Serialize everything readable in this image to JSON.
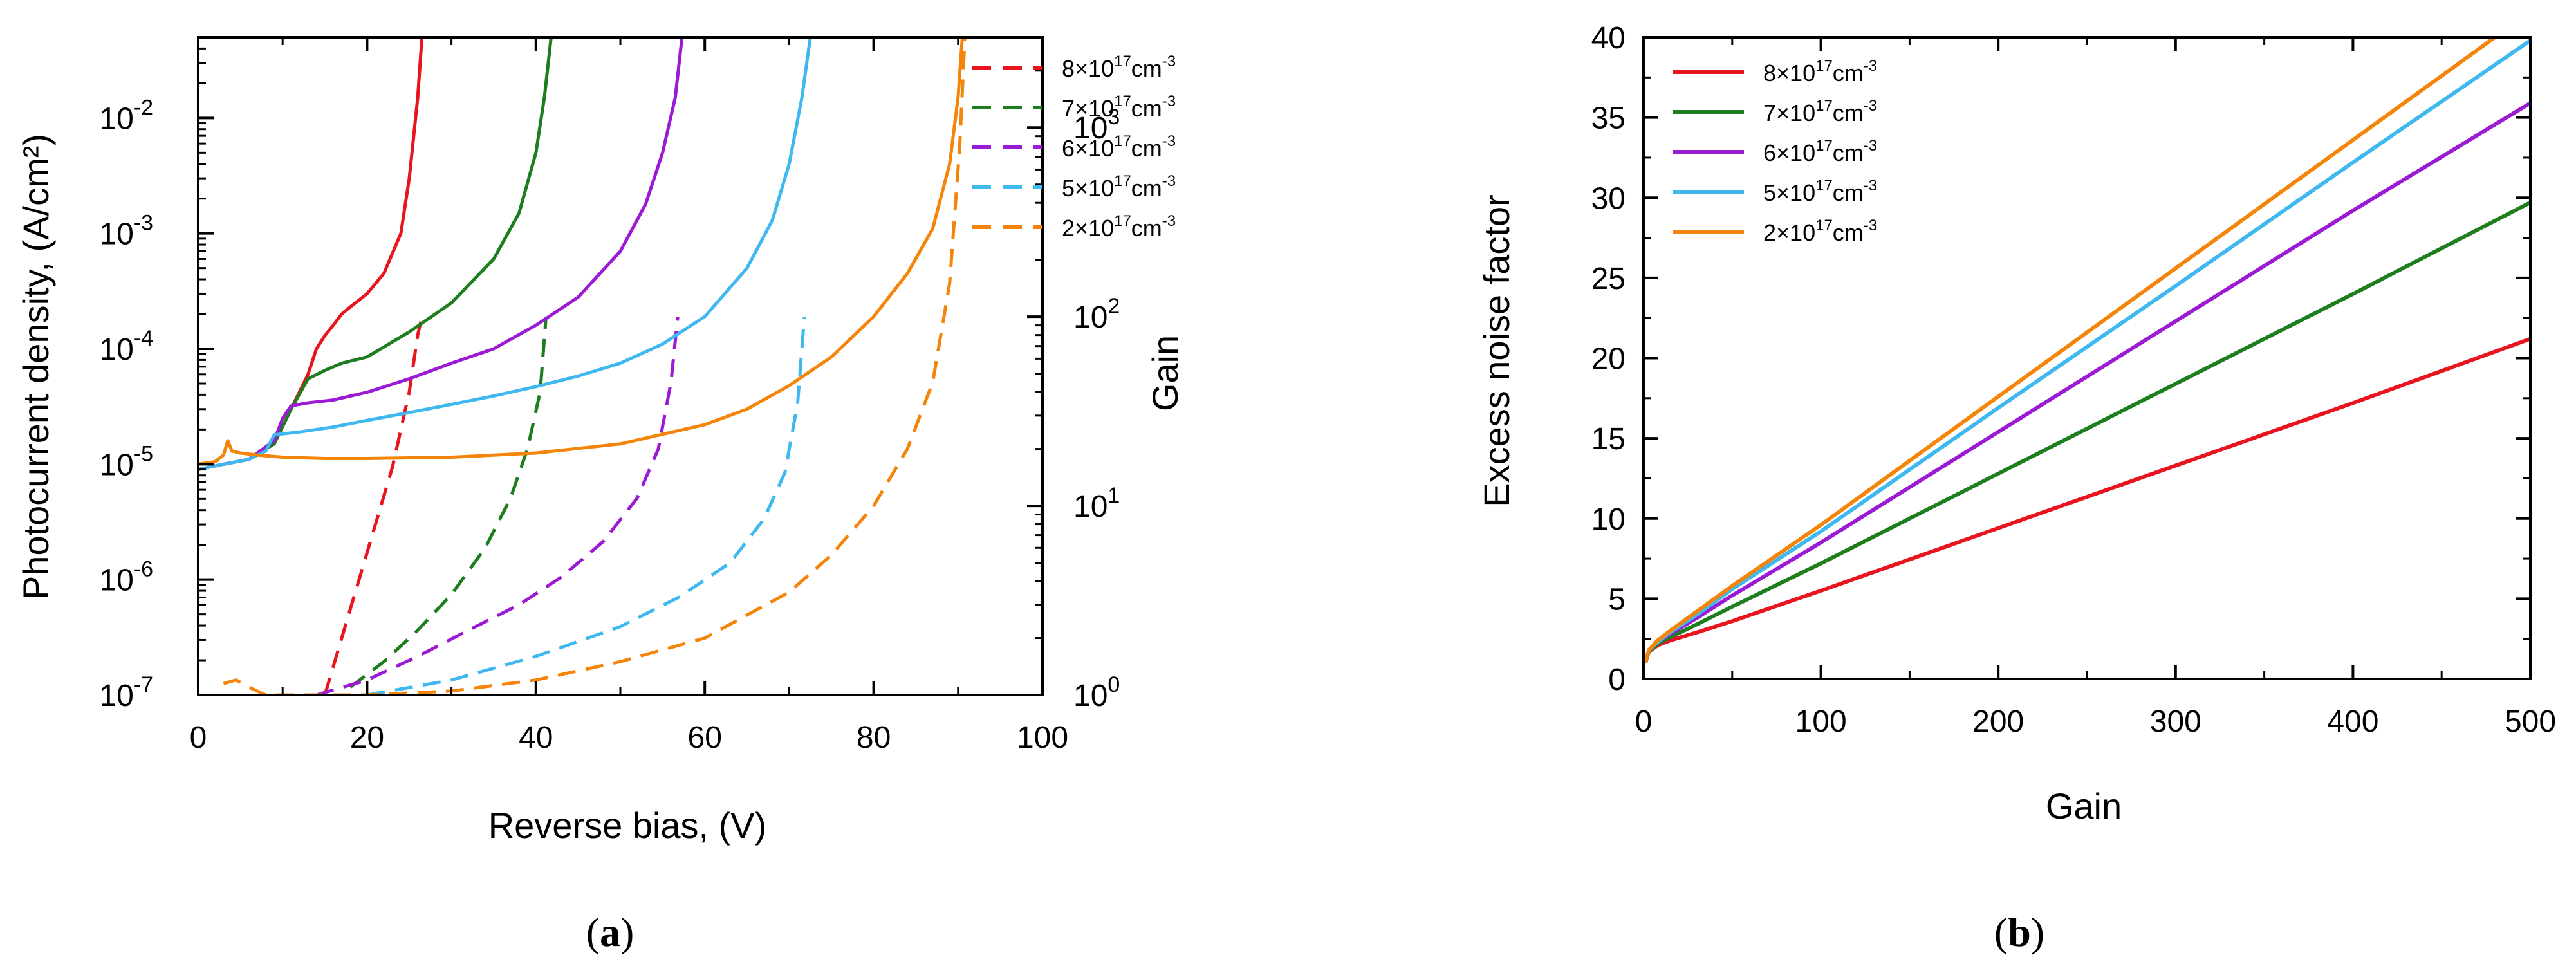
{
  "chart_data": [
    {
      "type": "line",
      "panel_label": "a",
      "xlabel": "Reverse bias, (V)",
      "ylabel_left": "Photocurrent density, (A/cm²)",
      "ylabel_right": "Gain",
      "xlim": [
        0,
        100
      ],
      "ylim_left": [
        1e-07,
        0.05
      ],
      "ylim_right": [
        1,
        3000
      ],
      "x_ticks": [
        "0",
        "20",
        "40",
        "60",
        "80",
        "100"
      ],
      "x_tick_values": [
        0,
        20,
        40,
        60,
        80,
        100
      ],
      "y_left_ticks": [
        {
          "value": 1e-07,
          "mant": "10",
          "exp": "-7"
        },
        {
          "value": 1e-06,
          "mant": "10",
          "exp": "-6"
        },
        {
          "value": 1e-05,
          "mant": "10",
          "exp": "-5"
        },
        {
          "value": 0.0001,
          "mant": "10",
          "exp": "-4"
        },
        {
          "value": 0.001,
          "mant": "10",
          "exp": "-3"
        },
        {
          "value": 0.01,
          "mant": "10",
          "exp": "-2"
        }
      ],
      "y_right_ticks": [
        {
          "value": 1,
          "mant": "10",
          "exp": "0"
        },
        {
          "value": 10,
          "mant": "10",
          "exp": "1"
        },
        {
          "value": 100,
          "mant": "10",
          "exp": "2"
        },
        {
          "value": 1000,
          "mant": "10",
          "exp": "3"
        }
      ],
      "legend": {
        "placement": "top-right",
        "entries": [
          {
            "mant": "8×10",
            "exp": "17",
            "unit": "cm",
            "uexp": "-3"
          },
          {
            "mant": "7×10",
            "exp": "17",
            "unit": "cm",
            "uexp": "-3"
          },
          {
            "mant": "6×10",
            "exp": "17",
            "unit": "cm",
            "uexp": "-3"
          },
          {
            "mant": "5×10",
            "exp": "17",
            "unit": "cm",
            "uexp": "-3"
          },
          {
            "mant": "2×10",
            "exp": "17",
            "unit": "cm",
            "uexp": "-3"
          }
        ]
      },
      "series": [
        {
          "name": "8×10^17 cm^-3",
          "color": "#e8141e",
          "photocurrent": {
            "x": [
              0,
              3,
              6,
              9,
              11,
              13,
              14,
              15,
              16,
              17,
              18,
              20,
              22,
              24,
              25,
              26,
              26.5
            ],
            "y": [
              9e-06,
              1e-05,
              1.1e-05,
              1.5e-05,
              3e-05,
              6e-05,
              0.0001,
              0.00013,
              0.00016,
              0.0002,
              0.00023,
              0.0003,
              0.00045,
              0.001,
              0.003,
              0.015,
              0.05
            ]
          },
          "gain": {
            "x": [
              15,
              17,
              19,
              21,
              23,
              25,
              26,
              26.5
            ],
            "y": [
              1,
              2,
              4,
              8,
              16,
              40,
              80,
              100
            ]
          }
        },
        {
          "name": "7×10^17 cm^-3",
          "color": "#1e7d1e",
          "photocurrent": {
            "x": [
              0,
              3,
              6,
              9,
              11,
              13,
              15,
              17,
              20,
              25,
              30,
              35,
              38,
              40,
              41,
              41.8
            ],
            "y": [
              9e-06,
              1e-05,
              1.1e-05,
              1.5e-05,
              3e-05,
              5.5e-05,
              6.5e-05,
              7.5e-05,
              8.5e-05,
              0.00014,
              0.00025,
              0.0006,
              0.0015,
              0.005,
              0.015,
              0.05
            ]
          },
          "gain": {
            "x": [
              18,
              22,
              26,
              30,
              34,
              37,
              39,
              40.5,
              41.2
            ],
            "y": [
              1.1,
              1.5,
              2.2,
              3.4,
              6,
              11,
              20,
              40,
              100
            ]
          }
        },
        {
          "name": "6×10^17 cm^-3",
          "color": "#9b1ad4",
          "photocurrent": {
            "x": [
              0,
              3,
              6,
              9,
              10,
              11,
              13,
              16,
              20,
              25,
              30,
              35,
              40,
              45,
              50,
              53,
              55,
              56.5,
              57.3
            ],
            "y": [
              9e-06,
              1e-05,
              1.1e-05,
              1.6e-05,
              2.5e-05,
              3.2e-05,
              3.4e-05,
              3.6e-05,
              4.2e-05,
              5.5e-05,
              7.5e-05,
              0.0001,
              0.00016,
              0.00028,
              0.0007,
              0.0018,
              0.005,
              0.015,
              0.05
            ]
          },
          "gain": {
            "x": [
              14,
              20,
              26,
              32,
              38,
              43,
              48,
              52,
              54.5,
              56,
              56.8
            ],
            "y": [
              1,
              1.2,
              1.6,
              2.2,
              3,
              4.2,
              6.5,
              11,
              20,
              45,
              100
            ]
          }
        },
        {
          "name": "5×10^17 cm^-3",
          "color": "#3fb8f0",
          "photocurrent": {
            "x": [
              0,
              3,
              6,
              8,
              9,
              12,
              16,
              20,
              25,
              30,
              35,
              40,
              45,
              50,
              55,
              60,
              65,
              68,
              70,
              71.5,
              72.5
            ],
            "y": [
              9e-06,
              1e-05,
              1.1e-05,
              1.3e-05,
              1.8e-05,
              1.9e-05,
              2.1e-05,
              2.4e-05,
              2.8e-05,
              3.3e-05,
              3.9e-05,
              4.7e-05,
              5.8e-05,
              7.5e-05,
              0.00011,
              0.00019,
              0.0005,
              0.0013,
              0.004,
              0.015,
              0.05
            ]
          },
          "gain": {
            "x": [
              20,
              30,
              40,
              50,
              57,
              63,
              67,
              69.5,
              71,
              71.8
            ],
            "y": [
              1,
              1.2,
              1.6,
              2.3,
              3.3,
              5,
              8.5,
              15,
              35,
              100
            ]
          }
        },
        {
          "name": "2×10^17 cm^-3",
          "color": "#f5850a",
          "photocurrent": {
            "x": [
              0,
              2,
              3,
              3.5,
              4,
              5,
              7,
              10,
              15,
              20,
              30,
              40,
              50,
              60,
              65,
              70,
              75,
              80,
              84,
              87,
              89,
              90,
              90.5
            ],
            "y": [
              1e-05,
              1.05e-05,
              1.2e-05,
              1.6e-05,
              1.3e-05,
              1.25e-05,
              1.2e-05,
              1.15e-05,
              1.12e-05,
              1.12e-05,
              1.15e-05,
              1.25e-05,
              1.5e-05,
              2.2e-05,
              3e-05,
              4.8e-05,
              8.5e-05,
              0.00019,
              0.00045,
              0.0011,
              0.004,
              0.015,
              0.05
            ]
          },
          "gain": {
            "x": [
              3,
              4.5,
              6,
              8,
              10,
              15,
              20,
              30,
              40,
              50,
              60,
              70,
              75,
              80,
              84,
              87,
              89,
              90.2,
              90.8
            ],
            "y": [
              1.15,
              1.2,
              1.1,
              1,
              1,
              1,
              1,
              1.05,
              1.2,
              1.5,
              2,
              3.5,
              5.5,
              10,
              20,
              45,
              150,
              800,
              3000
            ]
          }
        }
      ]
    },
    {
      "type": "line",
      "panel_label": "b",
      "xlabel": "Gain",
      "ylabel": "Excess noise factor",
      "xlim": [
        0,
        500
      ],
      "ylim": [
        0,
        40
      ],
      "x_ticks": [
        "0",
        "100",
        "200",
        "300",
        "400",
        "500"
      ],
      "x_tick_values": [
        0,
        100,
        200,
        300,
        400,
        500
      ],
      "y_ticks": [
        "0",
        "5",
        "10",
        "15",
        "20",
        "25",
        "30",
        "35",
        "40"
      ],
      "y_tick_values": [
        0,
        5,
        10,
        15,
        20,
        25,
        30,
        35,
        40
      ],
      "legend": {
        "placement": "top-left",
        "entries": [
          {
            "mant": "8×10",
            "exp": "17",
            "unit": "cm",
            "uexp": "-3"
          },
          {
            "mant": "7×10",
            "exp": "17",
            "unit": "cm",
            "uexp": "-3"
          },
          {
            "mant": "6×10",
            "exp": "17",
            "unit": "cm",
            "uexp": "-3"
          },
          {
            "mant": "5×10",
            "exp": "17",
            "unit": "cm",
            "uexp": "-3"
          },
          {
            "mant": "2×10",
            "exp": "17",
            "unit": "cm",
            "uexp": "-3"
          }
        ]
      },
      "series": [
        {
          "name": "8×10^17 cm^-3",
          "color": "#e8141e",
          "x": [
            1,
            3,
            8,
            15,
            30,
            50,
            100,
            200,
            300,
            400,
            500
          ],
          "y": [
            1,
            1.7,
            2.1,
            2.4,
            2.9,
            3.6,
            5.5,
            9.4,
            13.3,
            17.2,
            21.2
          ]
        },
        {
          "name": "7×10^17 cm^-3",
          "color": "#1e7d1e",
          "x": [
            1,
            3,
            8,
            15,
            30,
            50,
            100,
            200,
            300,
            400,
            500
          ],
          "y": [
            1,
            1.7,
            2.2,
            2.6,
            3.4,
            4.5,
            7.2,
            12.8,
            18.4,
            24,
            29.7
          ]
        },
        {
          "name": "6×10^17 cm^-3",
          "color": "#9b1ad4",
          "x": [
            1,
            3,
            8,
            15,
            30,
            50,
            100,
            200,
            300,
            400,
            500
          ],
          "y": [
            1,
            1.8,
            2.3,
            2.8,
            3.8,
            5.2,
            8.5,
            15.4,
            22.3,
            29.2,
            35.9
          ]
        },
        {
          "name": "5×10^17 cm^-3",
          "color": "#3fb8f0",
          "x": [
            1,
            3,
            8,
            15,
            30,
            50,
            100,
            200,
            300,
            400,
            500
          ],
          "y": [
            1,
            1.8,
            2.3,
            2.9,
            4,
            5.6,
            9.2,
            16.9,
            24.5,
            32.2,
            39.8
          ]
        },
        {
          "name": "2×10^17 cm^-3",
          "color": "#f5850a",
          "x": [
            1,
            3,
            8,
            15,
            30,
            50,
            100,
            200,
            300,
            400,
            480
          ],
          "y": [
            1,
            1.8,
            2.4,
            3,
            4.2,
            5.8,
            9.6,
            17.6,
            25.6,
            33.6,
            40
          ]
        }
      ]
    }
  ]
}
